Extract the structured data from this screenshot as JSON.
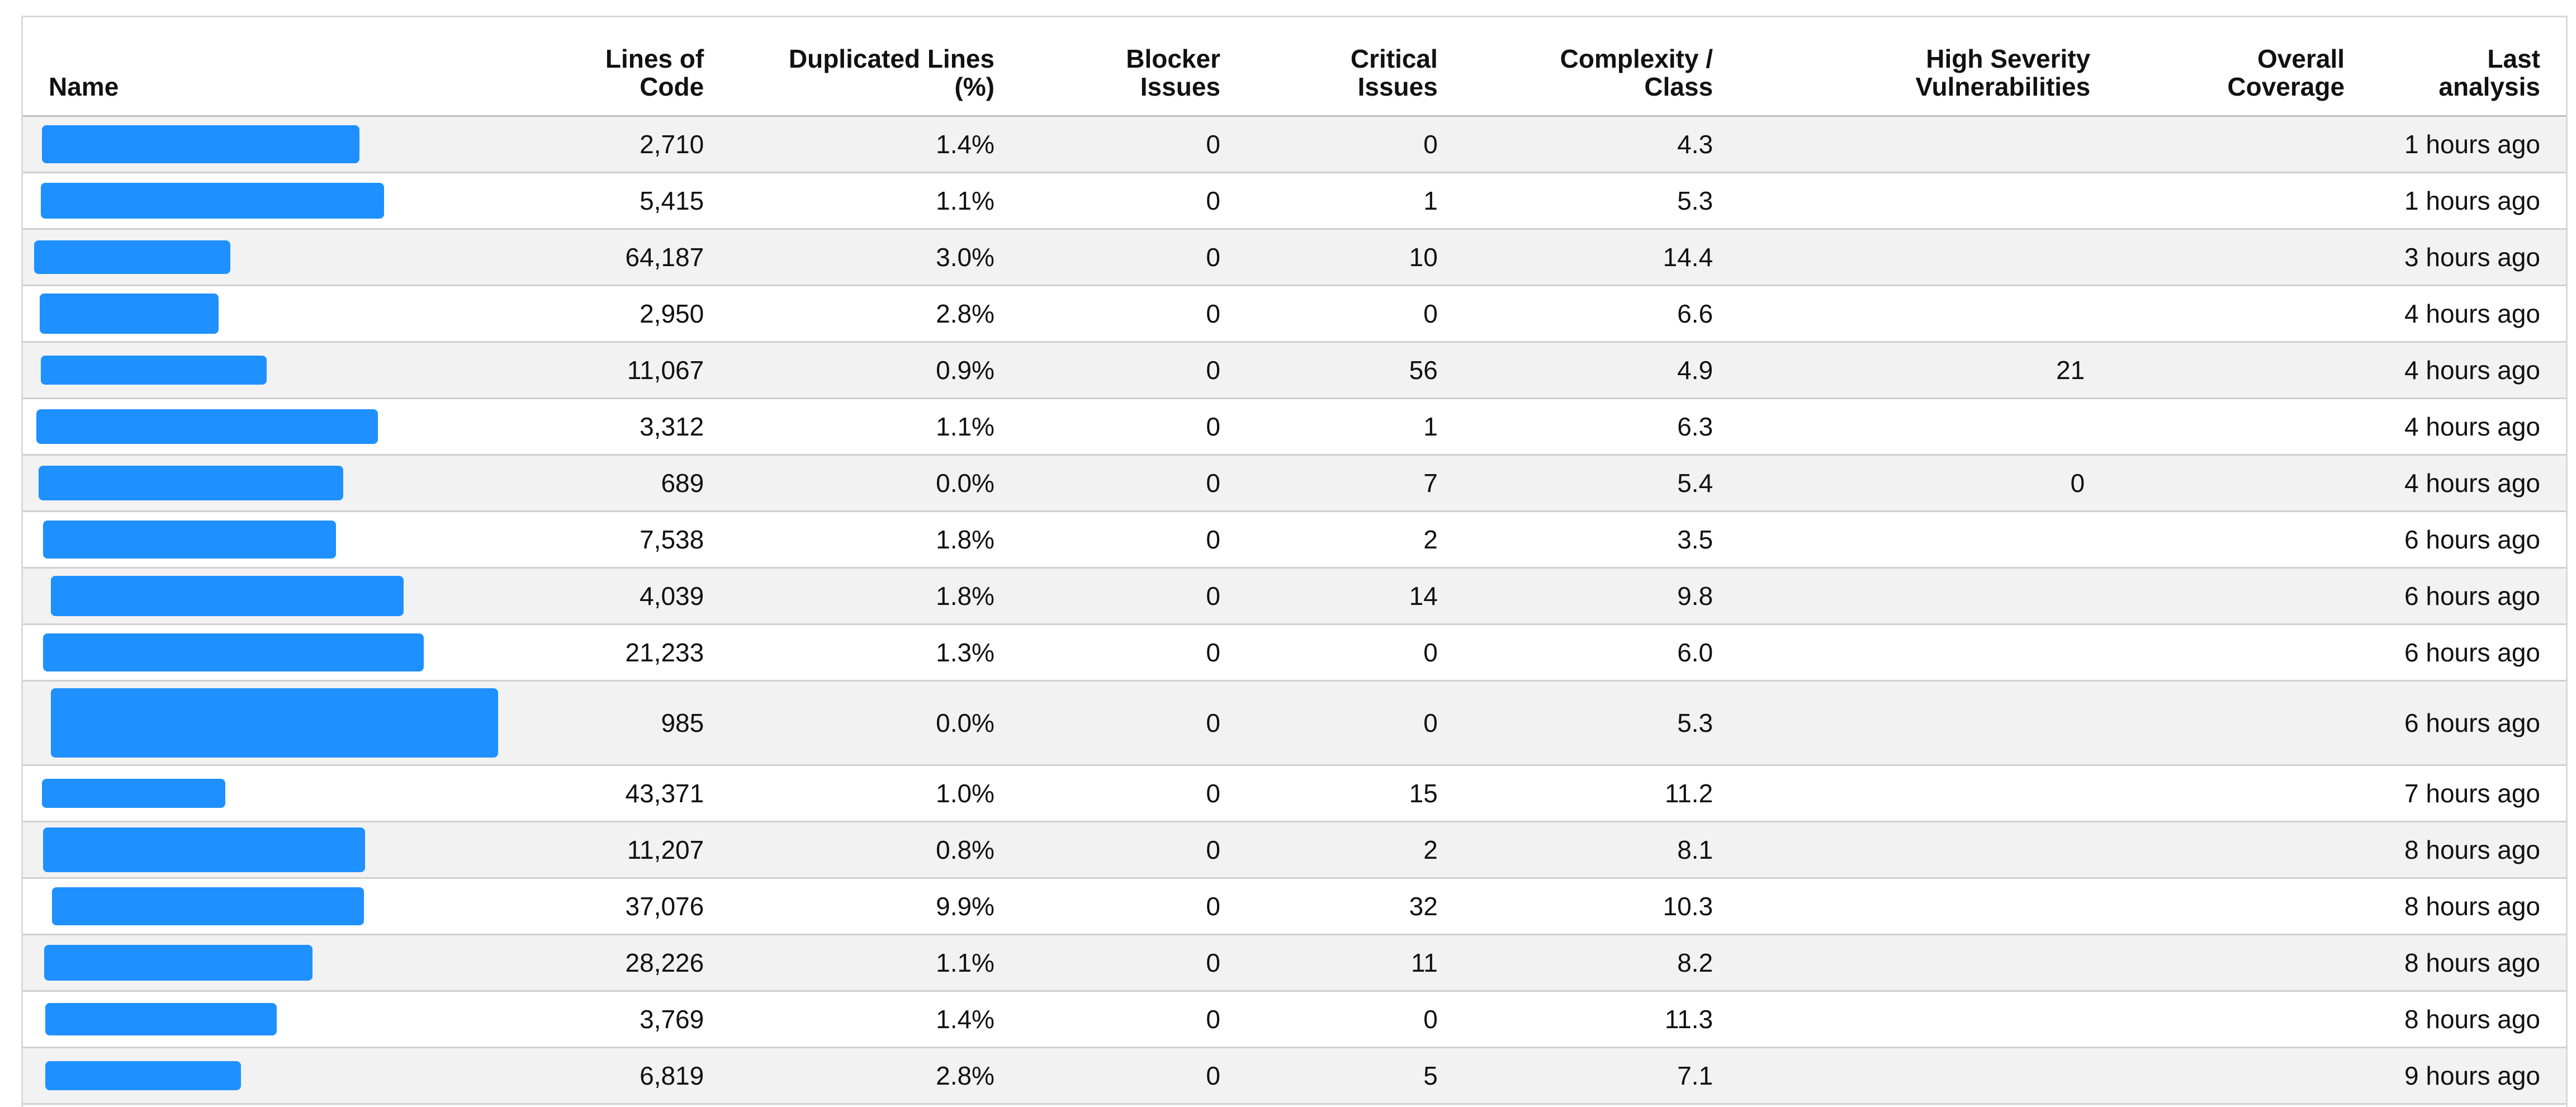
{
  "table": {
    "headers": {
      "name": "Name",
      "loc": [
        "Lines of",
        "Code"
      ],
      "dup": [
        "Duplicated Lines",
        "(%)"
      ],
      "blocker": [
        "Blocker",
        "Issues"
      ],
      "critical": [
        "Critical",
        "Issues"
      ],
      "complexity": [
        "Complexity /",
        "Class"
      ],
      "vuln": [
        "High Severity",
        "Vulnerabilities"
      ],
      "coverage": [
        "Overall",
        "Coverage"
      ],
      "last": [
        "Last",
        "analysis"
      ]
    },
    "rows": [
      {
        "loc": "2,710",
        "dup": "1.4%",
        "blocker": "0",
        "critical": "0",
        "complexity": "4.3",
        "vuln": "",
        "coverage": "",
        "last": "1 hours ago"
      },
      {
        "loc": "5,415",
        "dup": "1.1%",
        "blocker": "0",
        "critical": "1",
        "complexity": "5.3",
        "vuln": "",
        "coverage": "",
        "last": "1 hours ago"
      },
      {
        "loc": "64,187",
        "dup": "3.0%",
        "blocker": "0",
        "critical": "10",
        "complexity": "14.4",
        "vuln": "",
        "coverage": "",
        "last": "3 hours ago"
      },
      {
        "loc": "2,950",
        "dup": "2.8%",
        "blocker": "0",
        "critical": "0",
        "complexity": "6.6",
        "vuln": "",
        "coverage": "",
        "last": "4 hours ago"
      },
      {
        "loc": "11,067",
        "dup": "0.9%",
        "blocker": "0",
        "critical": "56",
        "complexity": "4.9",
        "vuln": "21",
        "coverage": "",
        "last": "4 hours ago"
      },
      {
        "loc": "3,312",
        "dup": "1.1%",
        "blocker": "0",
        "critical": "1",
        "complexity": "6.3",
        "vuln": "",
        "coverage": "",
        "last": "4 hours ago"
      },
      {
        "loc": "689",
        "dup": "0.0%",
        "blocker": "0",
        "critical": "7",
        "complexity": "5.4",
        "vuln": "0",
        "coverage": "",
        "last": "4 hours ago"
      },
      {
        "loc": "7,538",
        "dup": "1.8%",
        "blocker": "0",
        "critical": "2",
        "complexity": "3.5",
        "vuln": "",
        "coverage": "",
        "last": "6 hours ago"
      },
      {
        "loc": "4,039",
        "dup": "1.8%",
        "blocker": "0",
        "critical": "14",
        "complexity": "9.8",
        "vuln": "",
        "coverage": "",
        "last": "6 hours ago"
      },
      {
        "loc": "21,233",
        "dup": "1.3%",
        "blocker": "0",
        "critical": "0",
        "complexity": "6.0",
        "vuln": "",
        "coverage": "",
        "last": "6 hours ago"
      },
      {
        "loc": "985",
        "dup": "0.0%",
        "blocker": "0",
        "critical": "0",
        "complexity": "5.3",
        "vuln": "",
        "coverage": "",
        "last": "6 hours ago"
      },
      {
        "loc": "43,371",
        "dup": "1.0%",
        "blocker": "0",
        "critical": "15",
        "complexity": "11.2",
        "vuln": "",
        "coverage": "",
        "last": "7 hours ago"
      },
      {
        "loc": "11,207",
        "dup": "0.8%",
        "blocker": "0",
        "critical": "2",
        "complexity": "8.1",
        "vuln": "",
        "coverage": "",
        "last": "8 hours ago"
      },
      {
        "loc": "37,076",
        "dup": "9.9%",
        "blocker": "0",
        "critical": "32",
        "complexity": "10.3",
        "vuln": "",
        "coverage": "",
        "last": "8 hours ago"
      },
      {
        "loc": "28,226",
        "dup": "1.1%",
        "blocker": "0",
        "critical": "11",
        "complexity": "8.2",
        "vuln": "",
        "coverage": "",
        "last": "8 hours ago"
      },
      {
        "loc": "3,769",
        "dup": "1.4%",
        "blocker": "0",
        "critical": "0",
        "complexity": "11.3",
        "vuln": "",
        "coverage": "",
        "last": "8 hours ago"
      },
      {
        "loc": "6,819",
        "dup": "2.8%",
        "blocker": "0",
        "critical": "5",
        "complexity": "7.1",
        "vuln": "",
        "coverage": "",
        "last": "9 hours ago"
      }
    ]
  },
  "colors": {
    "redaction": "#1e90ff",
    "row_alt": "#f2f2f2",
    "border": "#d0d0d0"
  }
}
